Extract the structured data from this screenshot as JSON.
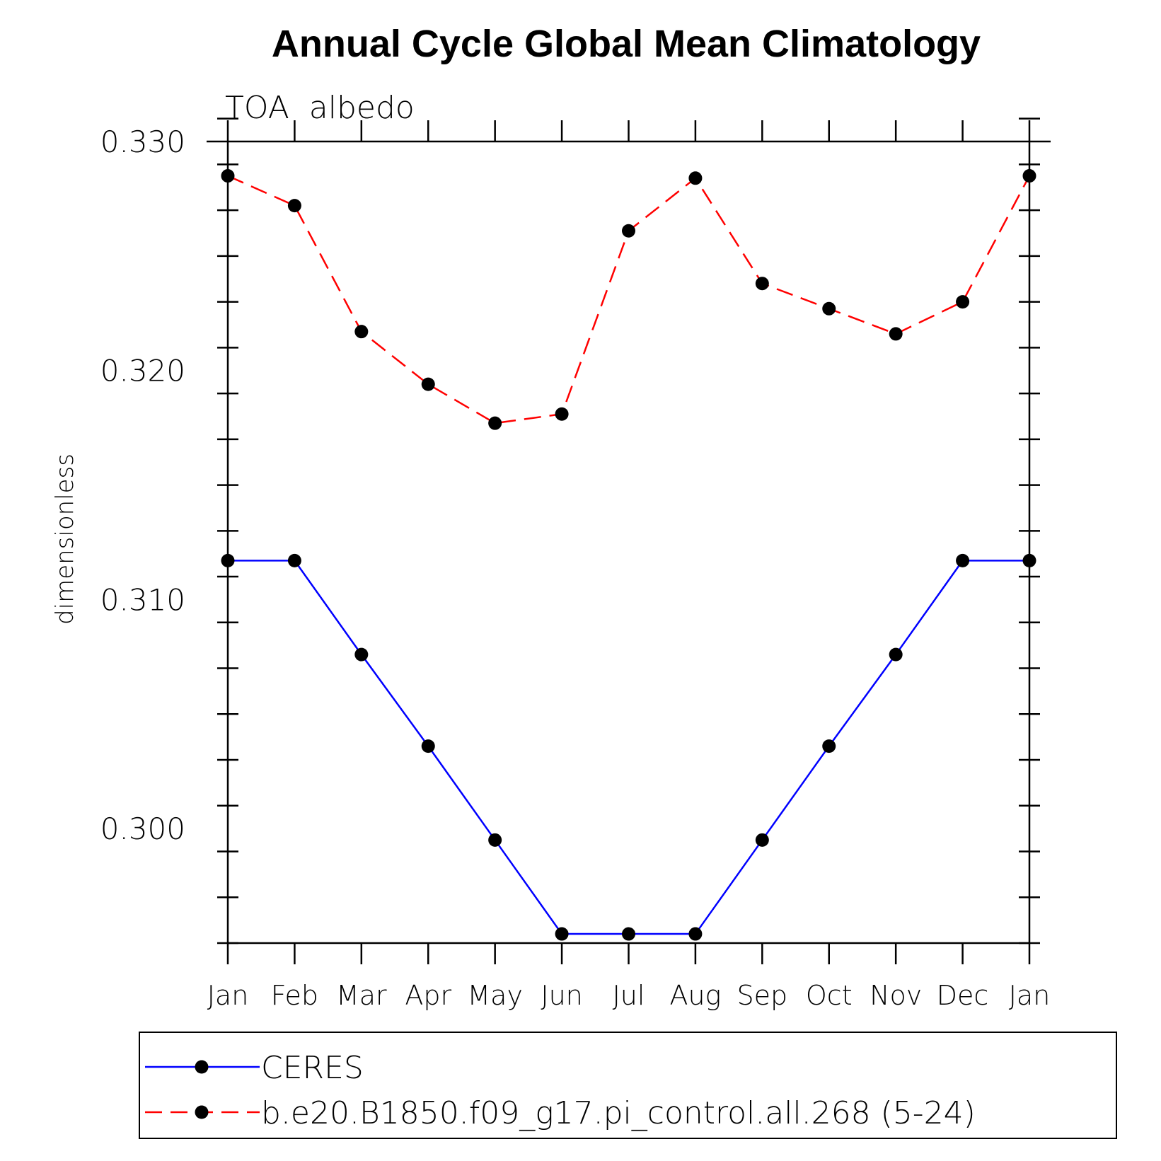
{
  "chart_data": {
    "type": "line",
    "title": "Annual Cycle Global Mean Climatology",
    "subtitle": "TOA  albedo",
    "ylabel": "dimensionless",
    "xlabel": "",
    "categories": [
      "Jan",
      "Feb",
      "Mar",
      "Apr",
      "May",
      "Jun",
      "Jul",
      "Aug",
      "Sep",
      "Oct",
      "Nov",
      "Dec",
      "Jan"
    ],
    "ylim": [
      0.295,
      0.33
    ],
    "yticks": [
      0.3,
      0.31,
      0.32,
      0.33
    ],
    "ytick_labels": [
      "0.300",
      "0.310",
      "0.320",
      "0.330"
    ],
    "minor_ytick_step": 0.002,
    "grid": false,
    "legend_position": "bottom",
    "series": [
      {
        "name": "CERES",
        "color": "#0000ff",
        "line_style": "solid",
        "marker": "filled-circle",
        "values": [
          0.3117,
          0.3117,
          0.3076,
          0.3036,
          0.2995,
          0.2954,
          0.2954,
          0.2954,
          0.2995,
          0.3036,
          0.3076,
          0.3117,
          0.3117
        ]
      },
      {
        "name": "b.e20.B1850.f09_g17.pi_control.all.268 (5-24)",
        "color": "#ff0000",
        "line_style": "dashed",
        "marker": "filled-circle",
        "values": [
          0.3285,
          0.3272,
          0.3217,
          0.3194,
          0.3177,
          0.3181,
          0.3261,
          0.3284,
          0.3238,
          0.3227,
          0.3216,
          0.323,
          0.3285
        ]
      }
    ]
  }
}
